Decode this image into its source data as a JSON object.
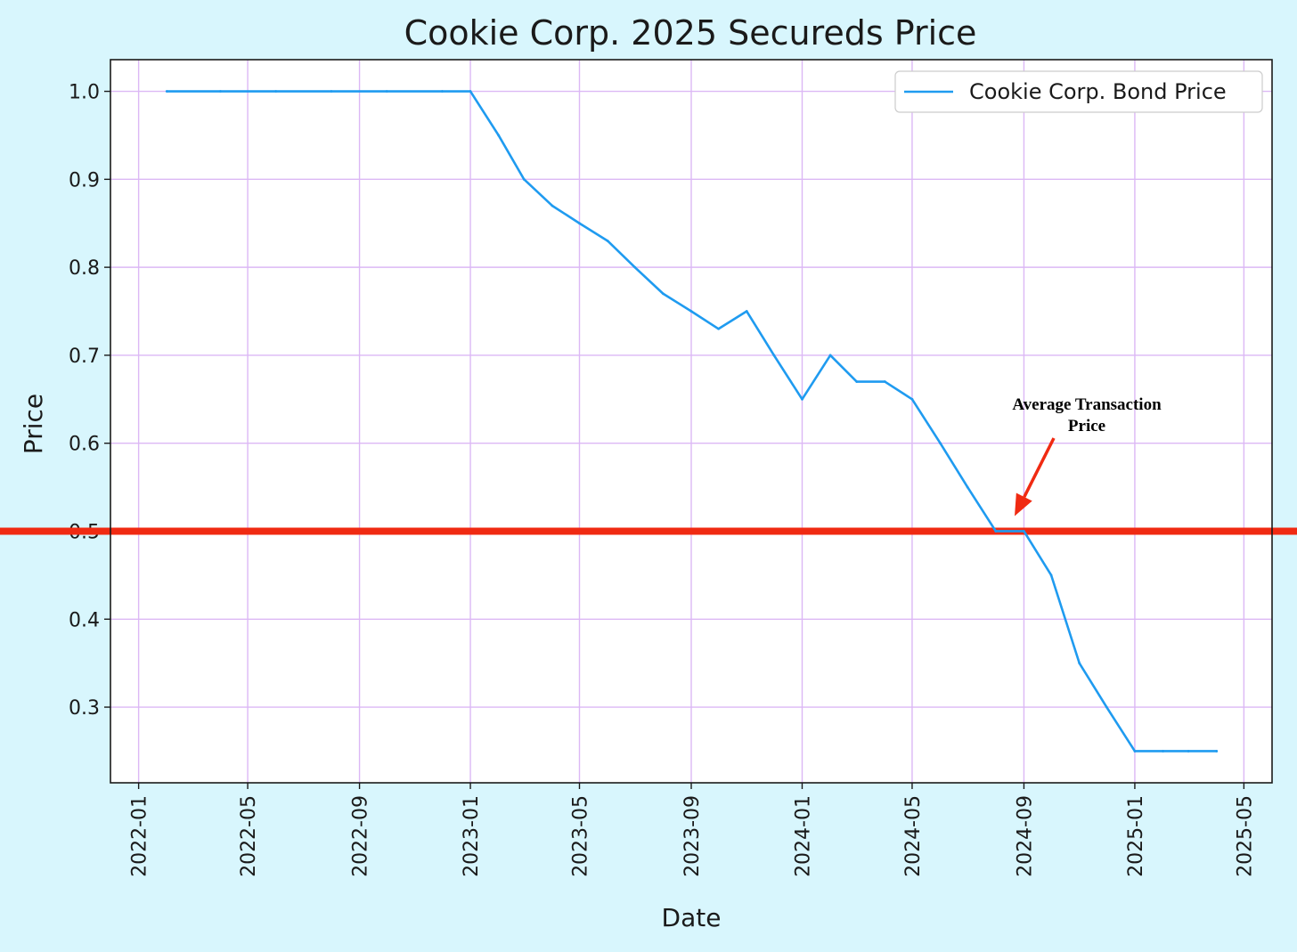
{
  "chart_data": {
    "type": "line",
    "title": "Cookie Corp. 2025 Secureds Price",
    "xlabel": "Date",
    "ylabel": "Price",
    "x_ticks": [
      "2022-01",
      "2022-05",
      "2022-09",
      "2023-01",
      "2023-05",
      "2023-09",
      "2024-01",
      "2024-05",
      "2024-09",
      "2025-01",
      "2025-05"
    ],
    "y_ticks": [
      "0.3",
      "0.4",
      "0.5",
      "0.6",
      "0.7",
      "0.8",
      "0.9",
      "1.0"
    ],
    "ylim": [
      0.214,
      1.036
    ],
    "xlim": [
      "2021-12-01",
      "2025-06-01"
    ],
    "grid": true,
    "legend_position": "top-right",
    "series": [
      {
        "name": "Cookie Corp. Bond Price",
        "color": "#1f9bf0",
        "points": [
          {
            "x": "2022-02-01",
            "y": 1.0
          },
          {
            "x": "2022-04-01",
            "y": 1.0
          },
          {
            "x": "2022-06-01",
            "y": 1.0
          },
          {
            "x": "2022-08-01",
            "y": 1.0
          },
          {
            "x": "2022-10-01",
            "y": 1.0
          },
          {
            "x": "2022-12-01",
            "y": 1.0
          },
          {
            "x": "2023-01-01",
            "y": 1.0
          },
          {
            "x": "2023-02-01",
            "y": 0.95
          },
          {
            "x": "2023-03-01",
            "y": 0.9
          },
          {
            "x": "2023-04-01",
            "y": 0.87
          },
          {
            "x": "2023-05-01",
            "y": 0.85
          },
          {
            "x": "2023-06-01",
            "y": 0.83
          },
          {
            "x": "2023-07-01",
            "y": 0.8
          },
          {
            "x": "2023-08-01",
            "y": 0.77
          },
          {
            "x": "2023-09-01",
            "y": 0.75
          },
          {
            "x": "2023-10-01",
            "y": 0.73
          },
          {
            "x": "2023-11-01",
            "y": 0.75
          },
          {
            "x": "2023-12-01",
            "y": 0.7
          },
          {
            "x": "2024-01-01",
            "y": 0.65
          },
          {
            "x": "2024-02-01",
            "y": 0.7
          },
          {
            "x": "2024-03-01",
            "y": 0.67
          },
          {
            "x": "2024-04-01",
            "y": 0.67
          },
          {
            "x": "2024-05-01",
            "y": 0.65
          },
          {
            "x": "2024-06-01",
            "y": 0.6
          },
          {
            "x": "2024-07-01",
            "y": 0.55
          },
          {
            "x": "2024-08-01",
            "y": 0.5
          },
          {
            "x": "2024-09-01",
            "y": 0.5
          },
          {
            "x": "2024-10-01",
            "y": 0.45
          },
          {
            "x": "2024-11-01",
            "y": 0.35
          },
          {
            "x": "2024-12-01",
            "y": 0.3
          },
          {
            "x": "2025-01-01",
            "y": 0.25
          },
          {
            "x": "2025-02-01",
            "y": 0.25
          },
          {
            "x": "2025-03-01",
            "y": 0.25
          },
          {
            "x": "2025-04-01",
            "y": 0.25
          }
        ]
      }
    ],
    "reference_line": {
      "y": 0.5,
      "color": "#f02a12"
    },
    "annotation": {
      "lines": [
        "Average Transaction",
        "Price"
      ],
      "arrow_color": "#f02a12"
    }
  },
  "colors": {
    "page_background": "#d8f6fd",
    "plot_background": "#ffffff",
    "grid": "#dcb8f5"
  }
}
